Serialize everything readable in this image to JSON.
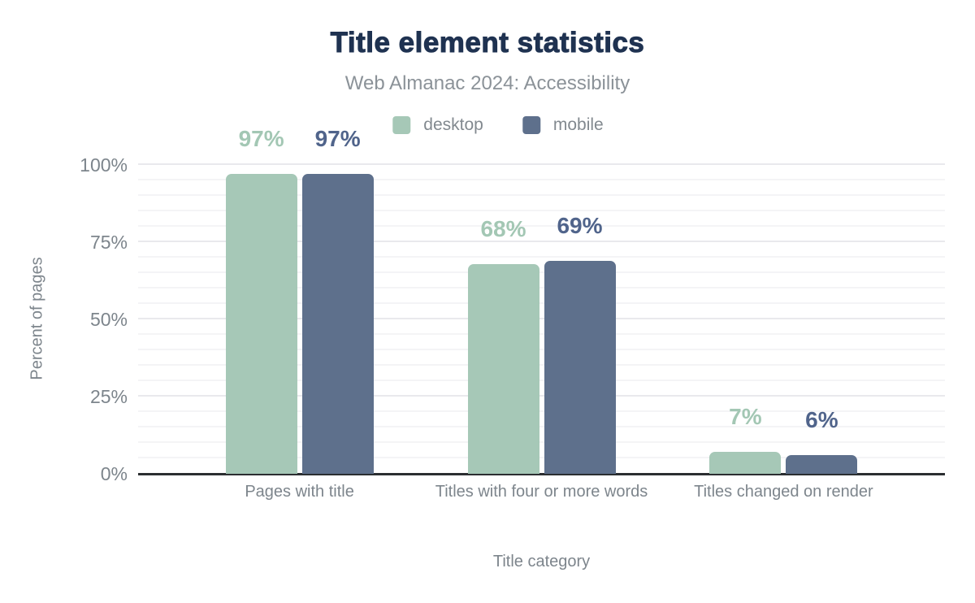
{
  "header": {
    "title": "Title element statistics",
    "subtitle": "Web Almanac 2024: Accessibility"
  },
  "chart_data": {
    "type": "bar",
    "title": "Title element statistics",
    "subtitle": "Web Almanac 2024: Accessibility",
    "categories": [
      "Pages with title",
      "Titles with four or more words",
      "Titles changed on render"
    ],
    "series": [
      {
        "name": "desktop",
        "color": "#a6c8b7",
        "label_color": "#a3c7b4",
        "values": [
          97,
          68,
          7
        ]
      },
      {
        "name": "mobile",
        "color": "#5e708c",
        "label_color": "#50648b",
        "values": [
          97,
          69,
          6
        ]
      }
    ],
    "value_label_suffix": "%",
    "xlabel": "Title category",
    "ylabel": "Percent of pages",
    "ylim": [
      0,
      100
    ],
    "yticks": [
      {
        "value": 0,
        "label": "0%"
      },
      {
        "value": 25,
        "label": "25%"
      },
      {
        "value": 50,
        "label": "50%"
      },
      {
        "value": 75,
        "label": "75%"
      },
      {
        "value": 100,
        "label": "100%"
      }
    ],
    "minor_grid_step": 5,
    "major_grid_step": 25,
    "grid": true,
    "legend_position": "top"
  },
  "colors": {
    "title": "#1f3251",
    "subtitle": "#8b9298",
    "axis_text": "#7d858c",
    "axis_line": "#2b2e31",
    "grid_minor": "#f4f4f6",
    "grid_major": "#e9e9ed",
    "background": "#ffffff"
  }
}
